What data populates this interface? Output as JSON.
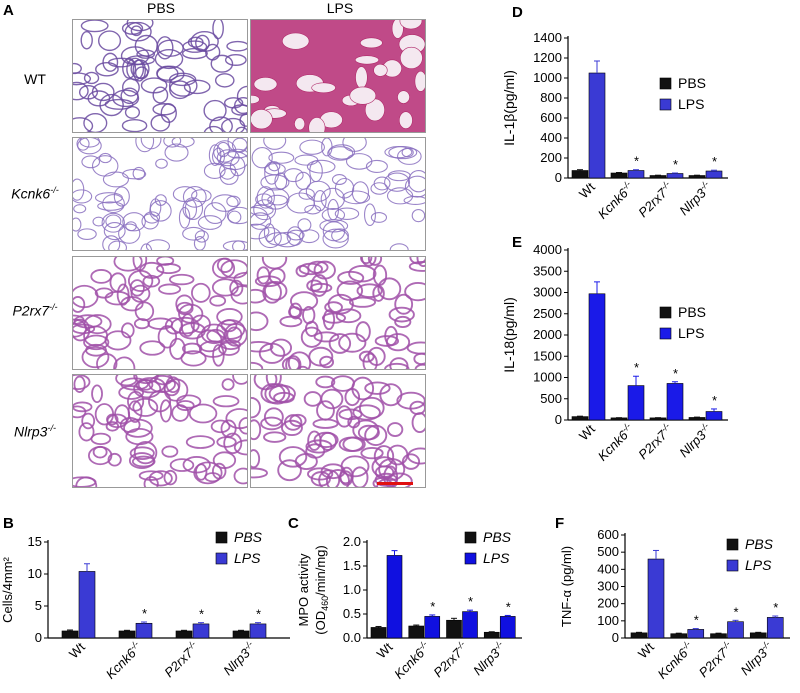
{
  "panel_a": {
    "letter": "A",
    "columns": [
      "PBS",
      "LPS"
    ],
    "rows": [
      "WT",
      "Kcnk6",
      "P2rx7",
      "Nlrp3"
    ],
    "superscript": "-/-"
  },
  "chart_data": [
    {
      "panel": "B",
      "type": "bar",
      "categories": [
        "Wt",
        "Kcnk6",
        "P2rx7",
        "Nlrp3"
      ],
      "category_sup": [
        "",
        "-/-",
        "-/-",
        "-/-"
      ],
      "category_italic": [
        false,
        true,
        true,
        true
      ],
      "ylabel": "Cells/4mm²",
      "ylim": [
        0,
        15
      ],
      "yticks": [
        0,
        5,
        10,
        15
      ],
      "legend_italic": true,
      "series": [
        {
          "name": "PBS",
          "color": "#111111",
          "values": [
            1.1,
            1.1,
            1.1,
            1.1
          ],
          "errors": [
            0.15,
            0.1,
            0.1,
            0.1
          ]
        },
        {
          "name": "LPS",
          "color": "#3a3ad4",
          "values": [
            10.4,
            2.3,
            2.2,
            2.2
          ],
          "errors": [
            1.2,
            0.2,
            0.2,
            0.2
          ]
        }
      ],
      "significance": [
        "",
        "*",
        "*",
        "*"
      ]
    },
    {
      "panel": "C",
      "type": "bar",
      "categories": [
        "Wt",
        "Kcnk6",
        "P2rx7",
        "Nlrp3"
      ],
      "category_sup": [
        "",
        "-/-",
        "-/-",
        "-/-"
      ],
      "category_italic": [
        false,
        true,
        true,
        true
      ],
      "ylabel_line1": "MPO activity",
      "ylabel_line2_pre": "(OD",
      "ylabel_line2_sub": "460",
      "ylabel_line2_post": "/min/mg)",
      "ylim": [
        0,
        2.0
      ],
      "yticks": [
        "0.0",
        "0.5",
        "1.0",
        "1.5",
        "2.0"
      ],
      "legend_italic": true,
      "series": [
        {
          "name": "PBS",
          "color": "#111111",
          "values": [
            0.22,
            0.25,
            0.37,
            0.12
          ],
          "errors": [
            0.02,
            0.02,
            0.04,
            0.01
          ]
        },
        {
          "name": "LPS",
          "color": "#1010e0",
          "values": [
            1.72,
            0.45,
            0.55,
            0.45
          ],
          "errors": [
            0.1,
            0.03,
            0.03,
            0.02
          ]
        }
      ],
      "significance": [
        "",
        "*",
        "*",
        "*"
      ]
    },
    {
      "panel": "D",
      "type": "bar",
      "categories": [
        "Wt",
        "Kcnk6",
        "P2rx7",
        "Nlrp3"
      ],
      "category_sup": [
        "",
        "-/-",
        "-/-",
        "-/-"
      ],
      "category_italic": [
        false,
        true,
        true,
        true
      ],
      "ylabel": "IL-1β(pg/ml)",
      "ylim": [
        0,
        1400
      ],
      "yticks": [
        0,
        200,
        400,
        600,
        800,
        1000,
        1200,
        1400
      ],
      "legend_italic": false,
      "series": [
        {
          "name": "PBS",
          "color": "#111111",
          "values": [
            75,
            50,
            25,
            25
          ],
          "errors": [
            8,
            5,
            3,
            3
          ]
        },
        {
          "name": "LPS",
          "color": "#3a3ad4",
          "values": [
            1050,
            75,
            45,
            70
          ],
          "errors": [
            120,
            8,
            5,
            8
          ]
        }
      ],
      "significance": [
        "",
        "*",
        "*",
        "*"
      ]
    },
    {
      "panel": "E",
      "type": "bar",
      "categories": [
        "Wt",
        "Kcnk6",
        "P2rx7",
        "Nlrp3"
      ],
      "category_sup": [
        "",
        "-/-",
        "-/-",
        "-/-"
      ],
      "category_italic": [
        false,
        true,
        true,
        true
      ],
      "ylabel": "IL-18(pg/ml)",
      "ylim": [
        0,
        4000
      ],
      "yticks": [
        0,
        500,
        1000,
        1500,
        2000,
        2500,
        3000,
        3500,
        4000
      ],
      "legend_italic": false,
      "series": [
        {
          "name": "PBS",
          "color": "#111111",
          "values": [
            80,
            50,
            50,
            60
          ],
          "errors": [
            10,
            5,
            5,
            8
          ]
        },
        {
          "name": "LPS",
          "color": "#1a1ae8",
          "values": [
            2970,
            810,
            860,
            200
          ],
          "errors": [
            280,
            220,
            40,
            60
          ]
        }
      ],
      "significance": [
        "",
        "*",
        "*",
        "*"
      ]
    },
    {
      "panel": "F",
      "type": "bar",
      "categories": [
        "Wt",
        "Kcnk6",
        "P2rx7",
        "Nlrp3"
      ],
      "category_sup": [
        "",
        "-/-",
        "-/-",
        "-/-"
      ],
      "category_italic": [
        false,
        true,
        true,
        true
      ],
      "ylabel": "TNF-α (pg/ml)",
      "ylim": [
        0,
        600
      ],
      "yticks": [
        0,
        100,
        200,
        300,
        400,
        500,
        600
      ],
      "legend_italic": true,
      "series": [
        {
          "name": "PBS",
          "color": "#111111",
          "values": [
            30,
            25,
            25,
            30
          ],
          "errors": [
            3,
            3,
            3,
            3
          ]
        },
        {
          "name": "LPS",
          "color": "#3a3ad4",
          "values": [
            460,
            50,
            95,
            120
          ],
          "errors": [
            50,
            5,
            8,
            8
          ]
        }
      ],
      "significance": [
        "",
        "*",
        "*",
        "*"
      ]
    }
  ]
}
